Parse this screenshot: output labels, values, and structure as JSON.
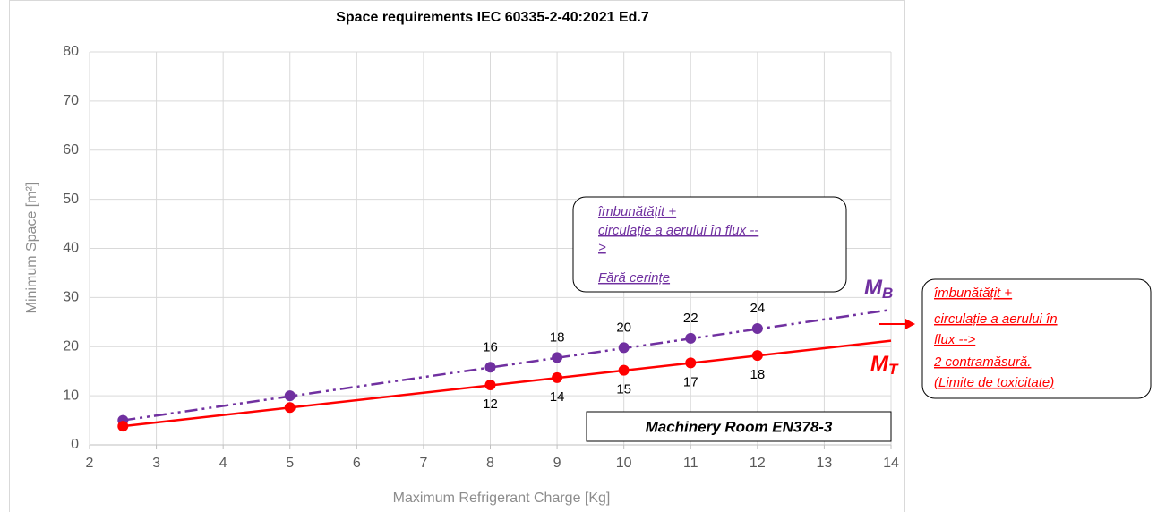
{
  "chart_data": {
    "type": "scatter",
    "title": "Space requirements  IEC 60335-2-40:2021  Ed.7",
    "x_label": "Maximum Refrigerant Charge [Kg]",
    "y_label": "Minimum Space  [m²]",
    "xlim": [
      2,
      14
    ],
    "xticks": [
      2,
      3,
      4,
      5,
      6,
      7,
      8,
      9,
      10,
      11,
      12,
      13,
      14
    ],
    "ylim": [
      0,
      80
    ],
    "yticks": [
      0,
      10,
      20,
      30,
      40,
      50,
      60,
      70,
      80
    ],
    "grid": true,
    "series": [
      {
        "color": "#7030a0",
        "dash": "dash-dot-dot",
        "label_position": "above",
        "x": [
          2.5,
          5,
          8,
          9,
          10,
          11,
          12
        ],
        "values": [
          5,
          10,
          15.8,
          17.8,
          19.8,
          21.7,
          23.7
        ],
        "value_labels": [
          null,
          null,
          "16",
          "18",
          "20",
          "22",
          "24"
        ],
        "trend_x": [
          2.5,
          14
        ],
        "trend_values": [
          5,
          27.5
        ]
      },
      {
        "color": "#ff0000",
        "dash": "solid",
        "label_position": "below",
        "x": [
          2.5,
          5,
          8,
          9,
          10,
          11,
          12
        ],
        "values": [
          3.8,
          7.6,
          12.2,
          13.7,
          15.2,
          16.7,
          18.2
        ],
        "value_labels": [
          null,
          null,
          "12",
          "14",
          "15",
          "17",
          "18"
        ],
        "trend_x": [
          2.5,
          14
        ],
        "trend_values": [
          3.8,
          21.2
        ]
      }
    ],
    "annotations": {
      "mb": {
        "main": "M",
        "sub": "B"
      },
      "mt": {
        "main": "M",
        "sub": "T"
      },
      "box_purple": [
        "îmbunătățit +",
        "circulație a aerului în flux --",
        ">",
        "Fără cerințe"
      ],
      "box_red": [
        "îmbunătățit +",
        "circulație a aerului în",
        "flux -->",
        "2 contramăsură.",
        "(Limite de toxicitate)"
      ],
      "room": "Machinery  Room EN378-3"
    }
  }
}
